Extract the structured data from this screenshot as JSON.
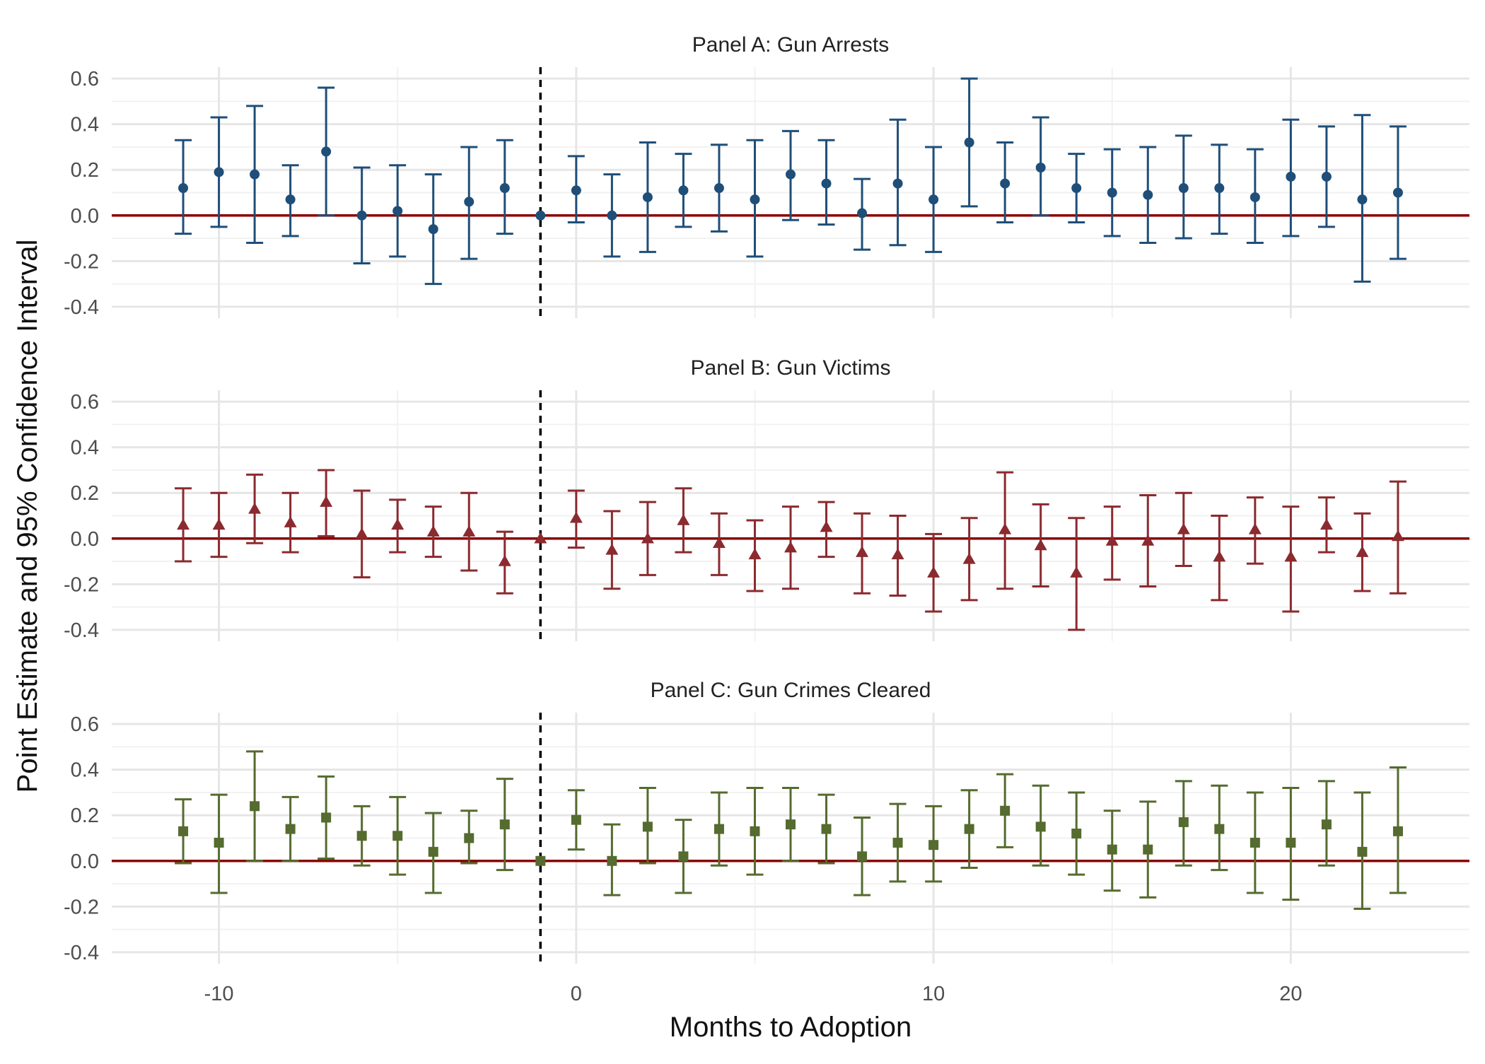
{
  "chart_data": {
    "type": "scatter",
    "subtype": "event-study coefficient plot with 95% confidence intervals, three stacked panels",
    "xlabel": "Months to Adoption",
    "ylabel": "Point Estimate and 95% Confidence Interval",
    "xlim": [
      -13,
      25
    ],
    "ylim": [
      -0.45,
      0.65
    ],
    "x_ticks": [
      -10,
      0,
      10,
      20
    ],
    "x_tick_labels": [
      "-10",
      "0",
      "10",
      "20"
    ],
    "y_ticks": [
      -0.4,
      -0.2,
      0.0,
      0.2,
      0.4,
      0.6
    ],
    "y_tick_labels": [
      "-0.4",
      "-0.2",
      "0.0",
      "0.2",
      "0.4",
      "0.6"
    ],
    "grid": true,
    "reference_lines": {
      "horizontal_y": 0,
      "horizontal_color": "#8b0000",
      "vertical_x": -1,
      "vertical_style": "dashed",
      "vertical_color": "#000000"
    },
    "panels": [
      {
        "title": "Panel A: Gun Arrests",
        "marker": "circle",
        "color": "#1f4e79",
        "x": [
          -11,
          -10,
          -9,
          -8,
          -7,
          -6,
          -5,
          -4,
          -3,
          -2,
          -1,
          0,
          1,
          2,
          3,
          4,
          5,
          6,
          7,
          8,
          9,
          10,
          11,
          12,
          13,
          14,
          15,
          16,
          17,
          18,
          19,
          20,
          21,
          22,
          23
        ],
        "estimate": [
          0.12,
          0.19,
          0.18,
          0.07,
          0.28,
          0.0,
          0.02,
          -0.06,
          0.06,
          0.12,
          0.0,
          0.11,
          0.0,
          0.08,
          0.11,
          0.12,
          0.07,
          0.18,
          0.14,
          0.01,
          0.14,
          0.07,
          0.32,
          0.14,
          0.21,
          0.12,
          0.1,
          0.09,
          0.12,
          0.12,
          0.08,
          0.17,
          0.17,
          0.07,
          0.1
        ],
        "lower": [
          -0.08,
          -0.05,
          -0.12,
          -0.09,
          0.0,
          -0.21,
          -0.18,
          -0.3,
          -0.19,
          -0.08,
          0.0,
          -0.03,
          -0.18,
          -0.16,
          -0.05,
          -0.07,
          -0.18,
          -0.02,
          -0.04,
          -0.15,
          -0.13,
          -0.16,
          0.04,
          -0.03,
          0.0,
          -0.03,
          -0.09,
          -0.12,
          -0.1,
          -0.08,
          -0.12,
          -0.09,
          -0.05,
          -0.29,
          -0.19
        ],
        "upper": [
          0.33,
          0.43,
          0.48,
          0.22,
          0.56,
          0.21,
          0.22,
          0.18,
          0.3,
          0.33,
          0.0,
          0.26,
          0.18,
          0.32,
          0.27,
          0.31,
          0.33,
          0.37,
          0.33,
          0.16,
          0.42,
          0.3,
          0.6,
          0.32,
          0.43,
          0.27,
          0.29,
          0.3,
          0.35,
          0.31,
          0.29,
          0.42,
          0.39,
          0.44,
          0.39
        ]
      },
      {
        "title": "Panel B: Gun Victims",
        "marker": "triangle",
        "color": "#8b2a2f",
        "x": [
          -11,
          -10,
          -9,
          -8,
          -7,
          -6,
          -5,
          -4,
          -3,
          -2,
          -1,
          0,
          1,
          2,
          3,
          4,
          5,
          6,
          7,
          8,
          9,
          10,
          11,
          12,
          13,
          14,
          15,
          16,
          17,
          18,
          19,
          20,
          21,
          22,
          23
        ],
        "estimate": [
          0.06,
          0.06,
          0.13,
          0.07,
          0.16,
          0.02,
          0.06,
          0.03,
          0.03,
          -0.1,
          0.0,
          0.09,
          -0.05,
          0.0,
          0.08,
          -0.02,
          -0.07,
          -0.04,
          0.05,
          -0.06,
          -0.07,
          -0.15,
          -0.09,
          0.04,
          -0.03,
          -0.15,
          -0.01,
          -0.01,
          0.04,
          -0.08,
          0.04,
          -0.08,
          0.06,
          -0.06,
          0.01
        ],
        "lower": [
          -0.1,
          -0.08,
          -0.02,
          -0.06,
          0.01,
          -0.17,
          -0.06,
          -0.08,
          -0.14,
          -0.24,
          0.0,
          -0.04,
          -0.22,
          -0.16,
          -0.06,
          -0.16,
          -0.23,
          -0.22,
          -0.08,
          -0.24,
          -0.25,
          -0.32,
          -0.27,
          -0.22,
          -0.21,
          -0.4,
          -0.18,
          -0.21,
          -0.12,
          -0.27,
          -0.11,
          -0.32,
          -0.06,
          -0.23,
          -0.24
        ],
        "upper": [
          0.22,
          0.2,
          0.28,
          0.2,
          0.3,
          0.21,
          0.17,
          0.14,
          0.2,
          0.03,
          0.0,
          0.21,
          0.12,
          0.16,
          0.22,
          0.11,
          0.08,
          0.14,
          0.16,
          0.11,
          0.1,
          0.02,
          0.09,
          0.29,
          0.15,
          0.09,
          0.14,
          0.19,
          0.2,
          0.1,
          0.18,
          0.14,
          0.18,
          0.11,
          0.25
        ]
      },
      {
        "title": "Panel C: Gun Crimes Cleared",
        "marker": "square",
        "color": "#556b2f",
        "x": [
          -11,
          -10,
          -9,
          -8,
          -7,
          -6,
          -5,
          -4,
          -3,
          -2,
          -1,
          0,
          1,
          2,
          3,
          4,
          5,
          6,
          7,
          8,
          9,
          10,
          11,
          12,
          13,
          14,
          15,
          16,
          17,
          18,
          19,
          20,
          21,
          22,
          23
        ],
        "estimate": [
          0.13,
          0.08,
          0.24,
          0.14,
          0.19,
          0.11,
          0.11,
          0.04,
          0.1,
          0.16,
          0.0,
          0.18,
          0.0,
          0.15,
          0.02,
          0.14,
          0.13,
          0.16,
          0.14,
          0.02,
          0.08,
          0.07,
          0.14,
          0.22,
          0.15,
          0.12,
          0.05,
          0.05,
          0.17,
          0.14,
          0.08,
          0.08,
          0.16,
          0.04,
          0.13
        ],
        "lower": [
          -0.01,
          -0.14,
          0.0,
          0.0,
          0.01,
          -0.02,
          -0.06,
          -0.14,
          -0.01,
          -0.04,
          0.0,
          0.05,
          -0.15,
          -0.01,
          -0.14,
          -0.02,
          -0.06,
          0.0,
          -0.01,
          -0.15,
          -0.09,
          -0.09,
          -0.03,
          0.06,
          -0.02,
          -0.06,
          -0.13,
          -0.16,
          -0.02,
          -0.04,
          -0.14,
          -0.17,
          -0.02,
          -0.21,
          -0.14
        ],
        "upper": [
          0.27,
          0.29,
          0.48,
          0.28,
          0.37,
          0.24,
          0.28,
          0.21,
          0.22,
          0.36,
          0.0,
          0.31,
          0.16,
          0.32,
          0.18,
          0.3,
          0.32,
          0.32,
          0.29,
          0.19,
          0.25,
          0.24,
          0.31,
          0.38,
          0.33,
          0.3,
          0.22,
          0.26,
          0.35,
          0.33,
          0.3,
          0.32,
          0.35,
          0.3,
          0.41
        ]
      }
    ]
  }
}
